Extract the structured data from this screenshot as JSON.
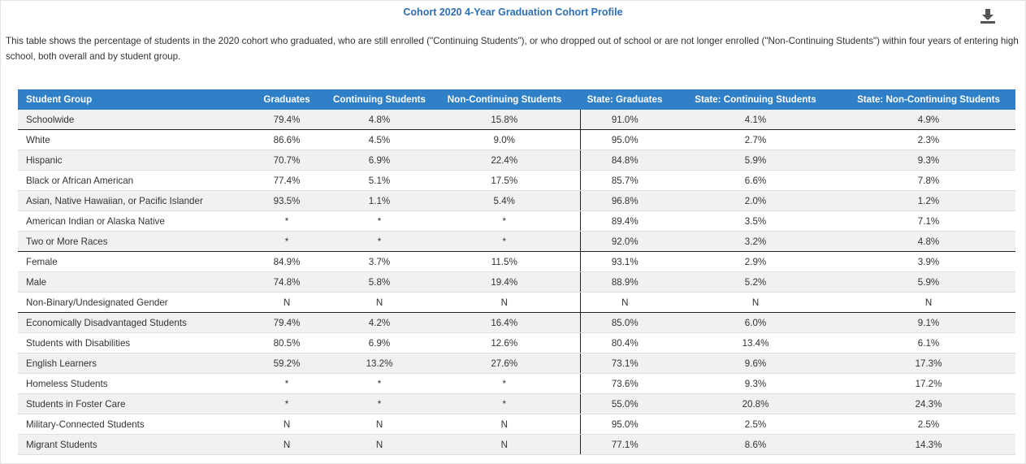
{
  "header": {
    "title": "Cohort 2020 4-Year Graduation Cohort Profile",
    "description": "This table shows the percentage of students in the 2020 cohort who graduated, who are still enrolled (\"Continuing Students\"), or who dropped out of school or are not longer enrolled (\"Non-Continuing Students\") within four years of entering high school, both overall and by student group."
  },
  "table": {
    "columns": [
      "Student Group",
      "Graduates",
      "Continuing Students",
      "Non-Continuing Students",
      "State: Graduates",
      "State: Continuing Students",
      "State: Non-Continuing Students"
    ],
    "rows": [
      [
        "Schoolwide",
        "79.4%",
        "4.8%",
        "15.8%",
        "91.0%",
        "4.1%",
        "4.9%"
      ],
      [
        "White",
        "86.6%",
        "4.5%",
        "9.0%",
        "95.0%",
        "2.7%",
        "2.3%"
      ],
      [
        "Hispanic",
        "70.7%",
        "6.9%",
        "22.4%",
        "84.8%",
        "5.9%",
        "9.3%"
      ],
      [
        "Black or African American",
        "77.4%",
        "5.1%",
        "17.5%",
        "85.7%",
        "6.6%",
        "7.8%"
      ],
      [
        "Asian, Native Hawaiian, or Pacific Islander",
        "93.5%",
        "1.1%",
        "5.4%",
        "96.8%",
        "2.0%",
        "1.2%"
      ],
      [
        "American Indian or Alaska Native",
        "*",
        "*",
        "*",
        "89.4%",
        "3.5%",
        "7.1%"
      ],
      [
        "Two or More Races",
        "*",
        "*",
        "*",
        "92.0%",
        "3.2%",
        "4.8%"
      ],
      [
        "Female",
        "84.9%",
        "3.7%",
        "11.5%",
        "93.1%",
        "2.9%",
        "3.9%"
      ],
      [
        "Male",
        "74.8%",
        "5.8%",
        "19.4%",
        "88.9%",
        "5.2%",
        "5.9%"
      ],
      [
        "Non-Binary/Undesignated Gender",
        "N",
        "N",
        "N",
        "N",
        "N",
        "N"
      ],
      [
        "Economically Disadvantaged Students",
        "79.4%",
        "4.2%",
        "16.4%",
        "85.0%",
        "6.0%",
        "9.1%"
      ],
      [
        "Students with Disabilities",
        "80.5%",
        "6.9%",
        "12.6%",
        "80.4%",
        "13.4%",
        "6.1%"
      ],
      [
        "English Learners",
        "59.2%",
        "13.2%",
        "27.6%",
        "73.1%",
        "9.6%",
        "17.3%"
      ],
      [
        "Homeless Students",
        "*",
        "*",
        "*",
        "73.6%",
        "9.3%",
        "17.2%"
      ],
      [
        "Students in Foster Care",
        "*",
        "*",
        "*",
        "55.0%",
        "20.8%",
        "24.3%"
      ],
      [
        "Military-Connected Students",
        "N",
        "N",
        "N",
        "95.0%",
        "2.5%",
        "2.5%"
      ],
      [
        "Migrant Students",
        "N",
        "N",
        "N",
        "77.1%",
        "8.6%",
        "14.3%"
      ]
    ]
  }
}
